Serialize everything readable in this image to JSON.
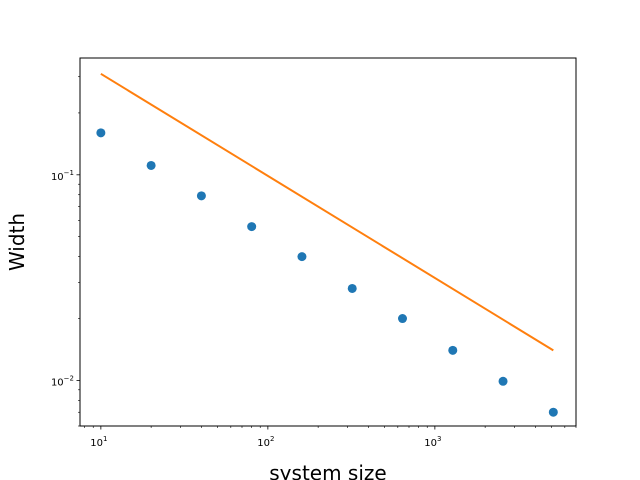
{
  "chart_data": {
    "type": "scatter",
    "xlabel": "system size",
    "ylabel": "Width",
    "xscale": "log",
    "yscale": "log",
    "xlim": [
      7.5,
      7000
    ],
    "ylim": [
      0.006,
      0.37
    ],
    "grid": false,
    "x_ticks": [
      {
        "value": 10,
        "base": "10",
        "exp": "1"
      },
      {
        "value": 100,
        "base": "10",
        "exp": "2"
      },
      {
        "value": 1000,
        "base": "10",
        "exp": "3"
      }
    ],
    "y_ticks": [
      {
        "value": 0.01,
        "base": "10",
        "exp": "−2"
      },
      {
        "value": 0.1,
        "base": "10",
        "exp": "−1"
      }
    ],
    "series": [
      {
        "kind": "scatter",
        "color": "#1f77b4",
        "x": [
          10,
          20,
          40,
          80,
          160,
          320,
          640,
          1280,
          2560,
          5120
        ],
        "y": [
          0.16,
          0.111,
          0.079,
          0.056,
          0.04,
          0.028,
          0.02,
          0.014,
          0.0099,
          0.007
        ]
      },
      {
        "kind": "line",
        "color": "#ff7f0e",
        "x": [
          10,
          5120
        ],
        "y": [
          0.31,
          0.014
        ]
      }
    ]
  }
}
